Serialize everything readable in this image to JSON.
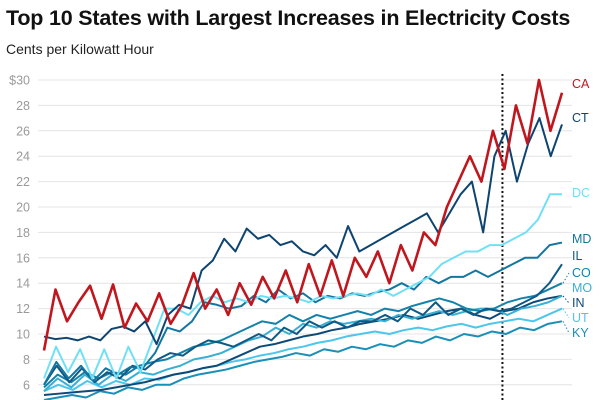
{
  "chart_data": {
    "type": "line",
    "title": "Top 10 States with Largest Increases in Electricity Costs",
    "subtitle": "Cents per Kilowatt Hour",
    "xlabel": "",
    "ylabel": "Cents per Kilowatt Hour",
    "ylim": [
      5,
      30
    ],
    "y_ticks": [
      "$30",
      "28",
      "26",
      "24",
      "22",
      "20",
      "18",
      "16",
      "14",
      "12",
      "10",
      "8",
      "6"
    ],
    "y_tick_values": [
      30,
      28,
      26,
      24,
      22,
      20,
      18,
      16,
      14,
      12,
      10,
      8,
      6
    ],
    "grid": true,
    "legend": "direct labels at right",
    "vline_fraction": 0.885,
    "series": [
      {
        "name": "KY",
        "color": "#1a8fb8",
        "values": [
          4.8,
          5,
          5.2,
          5,
          5.5,
          5.3,
          5.8,
          5.6,
          6,
          6,
          6.5,
          6.8,
          7,
          7.2,
          7.5,
          7.8,
          8,
          8.2,
          8.5,
          8.3,
          8.8,
          8.6,
          9,
          8.8,
          9.2,
          9,
          9.5,
          9.3,
          9.8,
          9.5,
          10,
          9.8,
          10.2,
          10,
          10.5,
          10.3,
          10.8,
          11
        ]
      },
      {
        "name": "UT",
        "color": "#4cc6ea",
        "values": [
          5.5,
          6,
          5.6,
          6.3,
          5.8,
          6.3,
          6,
          6.5,
          6.4,
          6.8,
          7,
          7.3,
          7.5,
          7.8,
          8,
          8.3,
          8.5,
          8.8,
          9,
          9.3,
          9.5,
          9.8,
          10,
          10.2,
          10,
          10.3,
          10.5,
          10.3,
          10.6,
          10.8,
          10.5,
          10.8,
          11,
          11.2,
          11,
          11.5,
          12
        ]
      },
      {
        "name": "IN",
        "color": "#0e4a78",
        "values": [
          5.2,
          5.3,
          5.4,
          5.5,
          5.6,
          5.8,
          6,
          6.2,
          6.5,
          6.8,
          7,
          7.3,
          7.5,
          8,
          8.5,
          9,
          9.2,
          9.5,
          9.8,
          10,
          10.3,
          10.5,
          10.8,
          11,
          11.2,
          11.5,
          11.2,
          11.5,
          11.8,
          12,
          11.5,
          11.2,
          11.8,
          12,
          12.5,
          12.8,
          13
        ]
      },
      {
        "name": "MO",
        "color": "#38b0d4",
        "values": [
          5.5,
          6.5,
          5.8,
          6.8,
          6,
          6.8,
          6.3,
          7,
          6.8,
          7.2,
          7.5,
          8,
          8.2,
          8.5,
          9,
          9.5,
          9.8,
          10.5,
          10,
          10.8,
          10.5,
          11,
          10.8,
          11,
          11.2,
          11,
          11.5,
          11.2,
          11.5,
          11.8,
          11.5,
          11.8,
          12,
          12,
          11.5,
          12,
          12.2,
          12.5,
          13
        ]
      },
      {
        "name": "CO",
        "color": "#1482a8",
        "values": [
          5.8,
          6.8,
          6.2,
          7,
          6.5,
          7,
          6.8,
          7.5,
          7.8,
          8,
          8.5,
          9,
          9.2,
          9.5,
          10,
          10.5,
          11,
          10.8,
          11.5,
          11,
          11.5,
          11.2,
          11.5,
          11.8,
          11.5,
          12,
          11.8,
          12.2,
          12.5,
          12.8,
          12.5,
          12,
          11.8,
          12,
          12.5,
          12.8,
          13,
          13.5,
          14
        ]
      },
      {
        "name": "IL",
        "color": "#0f5a85",
        "values": [
          6,
          7.5,
          6.2,
          7.3,
          6.2,
          7,
          6.5,
          7.5,
          7.2,
          8,
          8.5,
          8.3,
          9,
          9.5,
          9.3,
          9,
          9.5,
          10,
          9.5,
          10.5,
          10,
          11,
          10.5,
          11,
          10.5,
          11,
          11,
          11.5,
          11,
          12,
          11.5,
          12.5,
          11.5,
          12,
          11.5,
          12,
          11.8,
          12,
          12.5,
          13,
          14,
          15.5
        ]
      },
      {
        "name": "MD",
        "color": "#1376a0",
        "values": [
          6,
          7.8,
          6.5,
          7.5,
          6.3,
          7.3,
          6.8,
          7.4,
          7.3,
          8.5,
          10.5,
          10.2,
          11,
          12.5,
          12.3,
          12,
          12.2,
          13,
          12.5,
          13.5,
          12.8,
          13.2,
          12.5,
          13,
          12.8,
          13.2,
          13,
          13.3,
          13.5,
          14,
          13.5,
          14.5,
          14,
          14.5,
          14.5,
          15,
          14.5,
          15,
          15.5,
          16,
          16,
          17,
          17.2
        ]
      },
      {
        "name": "DC",
        "color": "#6fe0f6",
        "values": [
          6.5,
          9,
          7,
          8.8,
          6.5,
          8.8,
          6.5,
          9,
          7,
          9.5,
          12,
          12,
          11.5,
          12.5,
          13,
          12.5,
          12.8,
          12.5,
          13,
          12.8,
          13,
          12.8,
          12.5,
          13,
          12.8,
          13,
          13.2,
          13,
          13.5,
          13,
          13.5,
          14,
          14.5,
          15.5,
          16,
          16.5,
          16.5,
          17,
          17,
          17.5,
          18,
          19,
          21,
          21
        ]
      },
      {
        "name": "CT",
        "color": "#0d4470",
        "values": [
          9.8,
          9.6,
          9.7,
          9.5,
          9.8,
          9.5,
          10.4,
          10.6,
          10.2,
          11,
          9.2,
          11.5,
          12.3,
          12,
          15,
          15.8,
          17.5,
          16.5,
          18.3,
          17.5,
          17.8,
          17,
          17.3,
          16.5,
          16.2,
          17,
          16,
          18.5,
          16.5,
          17,
          17.5,
          18,
          18.5,
          19,
          19.5,
          18,
          19.5,
          21,
          22,
          18,
          24,
          26,
          22,
          25,
          27,
          24,
          26.5
        ]
      },
      {
        "name": "CA",
        "color": "#c0171f",
        "values": [
          8.7,
          13.5,
          11,
          12.5,
          13.8,
          11.2,
          13.9,
          10.5,
          12.4,
          11,
          13.2,
          10.8,
          12.3,
          14.8,
          12,
          13.5,
          11.5,
          14,
          12.3,
          14.5,
          12.8,
          15,
          12.5,
          15.5,
          13,
          15.8,
          13,
          16,
          14.5,
          16.5,
          14,
          17,
          15,
          18,
          17,
          20,
          22,
          24,
          22,
          26,
          23,
          28,
          25,
          30,
          26,
          29
        ]
      }
    ]
  }
}
